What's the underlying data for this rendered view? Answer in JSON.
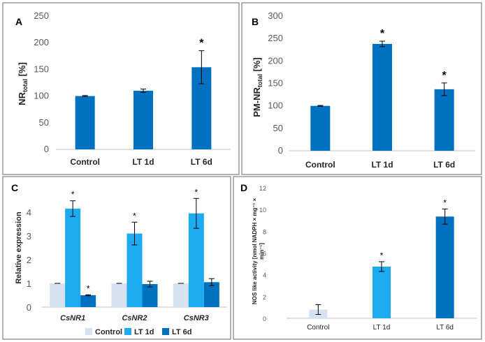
{
  "colors": {
    "control_light": "#d6e2f1",
    "lt1d_cyan": "#1eaaf1",
    "lt6d_blue": "#0070c0",
    "panel_bar_blue": "#0070c0",
    "frame": "#7f7f7f"
  },
  "chart_data": [
    {
      "panel": "A",
      "type": "bar",
      "categories": [
        "Control",
        "LT 1d",
        "LT 6d"
      ],
      "values": [
        100,
        110,
        154
      ],
      "errors": [
        1,
        3,
        31
      ],
      "significant": [
        false,
        false,
        true
      ],
      "star": "*",
      "ylabel": "NR",
      "ylabel_sub": "total",
      "ylabel_suffix": " [%]",
      "ylim": [
        0,
        250
      ],
      "yticks": [
        "0",
        "50",
        "100",
        "150",
        "200",
        "250"
      ]
    },
    {
      "panel": "B",
      "type": "bar",
      "categories": [
        "Control",
        "LT 1d",
        "LT 6d"
      ],
      "values": [
        100,
        238,
        137
      ],
      "errors": [
        1,
        6,
        14
      ],
      "significant": [
        false,
        true,
        true
      ],
      "star": "*",
      "ylabel": "PM-NR",
      "ylabel_sub": "total",
      "ylabel_suffix": " [%]",
      "ylim": [
        0,
        300
      ],
      "yticks": [
        "0",
        "50",
        "100",
        "150",
        "200",
        "250",
        "300"
      ]
    },
    {
      "panel": "C",
      "type": "bar",
      "categories": [
        "CsNR1",
        "CsNR2",
        "CsNR3"
      ],
      "series": [
        {
          "name": "Control",
          "values": [
            1.0,
            1.0,
            1.0
          ],
          "errors": [
            0,
            0,
            0
          ],
          "significant": [
            false,
            false,
            false
          ]
        },
        {
          "name": "LT 1d",
          "values": [
            4.15,
            3.1,
            3.95
          ],
          "errors": [
            0.33,
            0.48,
            0.63
          ],
          "significant": [
            true,
            true,
            true
          ]
        },
        {
          "name": "LT 6d",
          "values": [
            0.5,
            0.97,
            1.05
          ],
          "errors": [
            0.02,
            0.12,
            0.15
          ],
          "significant": [
            true,
            false,
            false
          ]
        }
      ],
      "star": "*",
      "ylabel": "Relative expression",
      "ylim": [
        0,
        5
      ],
      "yticks": [
        "0",
        "1",
        "2",
        "3",
        "4"
      ],
      "legend": [
        "Control",
        "LT 1d",
        "LT 6d"
      ]
    },
    {
      "panel": "D",
      "type": "bar",
      "categories": [
        "Control",
        "LT 1d",
        "LT 6d"
      ],
      "values": [
        0.8,
        4.75,
        9.35
      ],
      "errors": [
        0.45,
        0.45,
        0.7
      ],
      "significant": [
        false,
        true,
        true
      ],
      "star": "*",
      "ylabel": "NOS like activity [nmol NADPH × mg⁻¹ ×",
      "ylabel_line2": "min⁻¹]",
      "ylim": [
        0,
        12
      ],
      "yticks": [
        "0",
        "2",
        "4",
        "6",
        "8",
        "10",
        "12"
      ]
    }
  ]
}
